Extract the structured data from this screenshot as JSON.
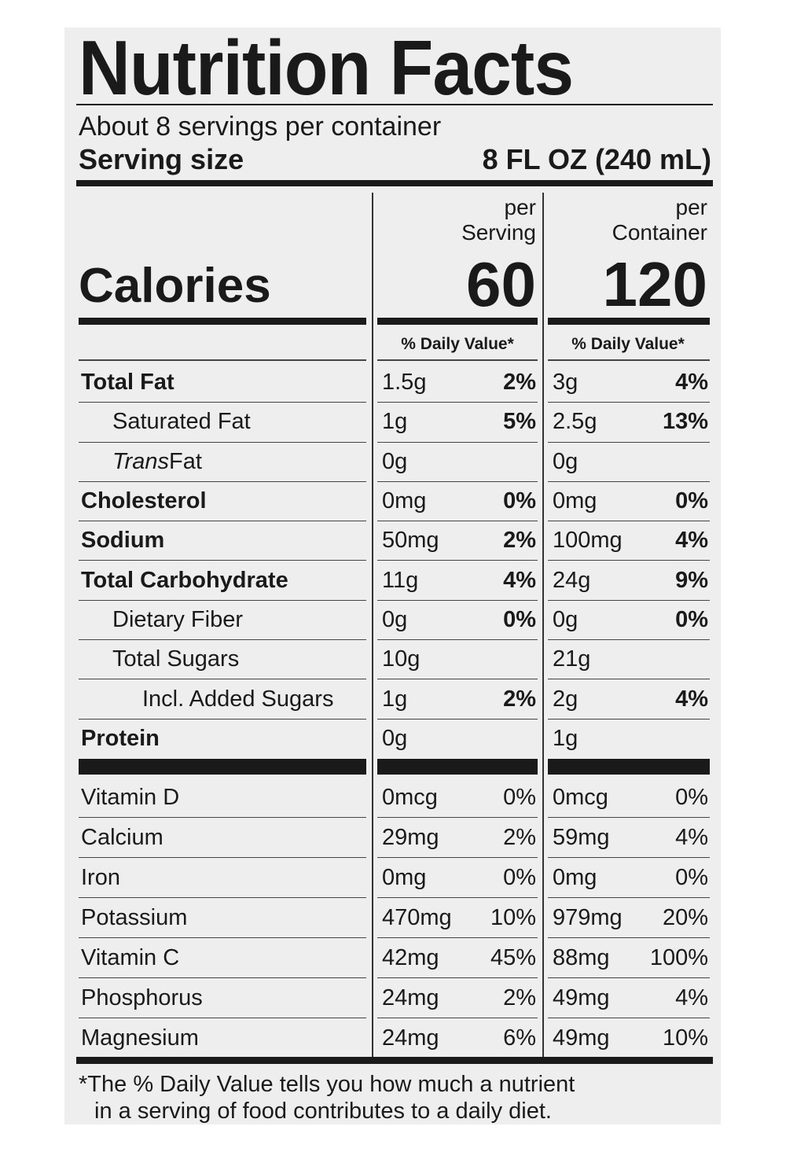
{
  "title": "Nutrition Facts",
  "servings_per_container": "About 8 servings per container",
  "serving_size_label": "Serving size",
  "serving_size_value": "8 FL OZ (240 mL)",
  "columns": {
    "serving": {
      "line1": "per",
      "line2": "Serving",
      "calories": "60",
      "dv_header": "% Daily Value*"
    },
    "container": {
      "line1": "per",
      "line2": "Container",
      "calories": "120",
      "dv_header": "% Daily Value*"
    }
  },
  "calories_label": "Calories",
  "nutrients": [
    {
      "name": "Total Fat",
      "bold": true,
      "indent": 0,
      "serving_amount": "1.5g",
      "serving_dv": "2%",
      "container_amount": "3g",
      "container_dv": "4%"
    },
    {
      "name": "Saturated Fat",
      "bold": false,
      "indent": 1,
      "serving_amount": "1g",
      "serving_dv": "5%",
      "container_amount": "2.5g",
      "container_dv": "13%"
    },
    {
      "name": "Trans Fat",
      "bold": false,
      "indent": 1,
      "italic_prefix": "Trans",
      "serving_amount": "0g",
      "serving_dv": "",
      "container_amount": "0g",
      "container_dv": ""
    },
    {
      "name": "Cholesterol",
      "bold": true,
      "indent": 0,
      "serving_amount": "0mg",
      "serving_dv": "0%",
      "container_amount": "0mg",
      "container_dv": "0%"
    },
    {
      "name": "Sodium",
      "bold": true,
      "indent": 0,
      "serving_amount": "50mg",
      "serving_dv": "2%",
      "container_amount": "100mg",
      "container_dv": "4%"
    },
    {
      "name": "Total Carbohydrate",
      "bold": true,
      "indent": 0,
      "serving_amount": "11g",
      "serving_dv": "4%",
      "container_amount": "24g",
      "container_dv": "9%"
    },
    {
      "name": "Dietary Fiber",
      "bold": false,
      "indent": 1,
      "serving_amount": "0g",
      "serving_dv": "0%",
      "container_amount": "0g",
      "container_dv": "0%"
    },
    {
      "name": "Total Sugars",
      "bold": false,
      "indent": 1,
      "serving_amount": "10g",
      "serving_dv": "",
      "container_amount": "21g",
      "container_dv": ""
    },
    {
      "name": "Incl. Added Sugars",
      "bold": false,
      "indent": 2,
      "serving_amount": "1g",
      "serving_dv": "2%",
      "container_amount": "2g",
      "container_dv": "4%"
    },
    {
      "name": "Protein",
      "bold": true,
      "indent": 0,
      "serving_amount": "0g",
      "serving_dv": "",
      "container_amount": "1g",
      "container_dv": ""
    }
  ],
  "vitamins": [
    {
      "name": "Vitamin D",
      "serving_amount": "0mcg",
      "serving_dv": "0%",
      "container_amount": "0mcg",
      "container_dv": "0%"
    },
    {
      "name": "Calcium",
      "serving_amount": "29mg",
      "serving_dv": "2%",
      "container_amount": "59mg",
      "container_dv": "4%"
    },
    {
      "name": "Iron",
      "serving_amount": "0mg",
      "serving_dv": "0%",
      "container_amount": "0mg",
      "container_dv": "0%"
    },
    {
      "name": "Potassium",
      "serving_amount": "470mg",
      "serving_dv": "10%",
      "container_amount": "979mg",
      "container_dv": "20%"
    },
    {
      "name": "Vitamin C",
      "serving_amount": "42mg",
      "serving_dv": "45%",
      "container_amount": "88mg",
      "container_dv": "100%"
    },
    {
      "name": "Phosphorus",
      "serving_amount": "24mg",
      "serving_dv": "2%",
      "container_amount": "49mg",
      "container_dv": "4%"
    },
    {
      "name": "Magnesium",
      "serving_amount": "24mg",
      "serving_dv": "6%",
      "container_amount": "49mg",
      "container_dv": "10%"
    }
  ],
  "footnote_line1": "*The % Daily Value tells you how much a nutrient",
  "footnote_line2": "in a serving of food contributes to a daily diet."
}
